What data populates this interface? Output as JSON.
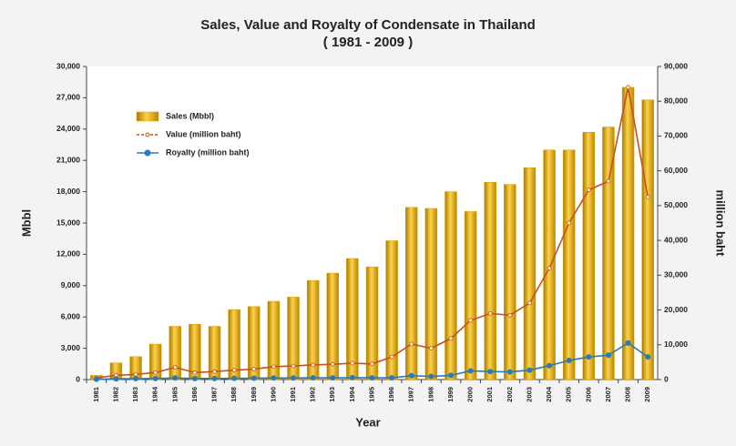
{
  "chart_data": {
    "type": "bar_line_dual",
    "title": "Sales, Value and Royalty of Condensate in Thailand",
    "subtitle": "( 1981 - 2009 )",
    "x_label": "Year",
    "y_label": "Mbbl",
    "y2_label": "million baht",
    "categories": [
      "1981",
      "1982",
      "1983",
      "1984",
      "1985",
      "1986",
      "1987",
      "1988",
      "1989",
      "1990",
      "1991",
      "1992",
      "1993",
      "1994",
      "1995",
      "1996",
      "1997",
      "1998",
      "1999",
      "2000",
      "2001",
      "2002",
      "2003",
      "2004",
      "2005",
      "2006",
      "2007",
      "2008",
      "2009"
    ],
    "series": [
      {
        "name": "Sales (Mbbl)",
        "kind": "bar",
        "color": "#d9a300",
        "values": [
          400,
          1600,
          2200,
          3400,
          5100,
          5300,
          5100,
          6700,
          7000,
          7500,
          7900,
          9500,
          10200,
          11600,
          10800,
          13300,
          16500,
          16400,
          18000,
          16100,
          18900,
          18700,
          20300,
          22000,
          22000,
          23700,
          24200,
          28000,
          26800
        ]
      },
      {
        "name": "Value (million baht)",
        "kind": "line",
        "axis": "y2",
        "color": "#c8501e",
        "values": [
          500,
          1200,
          1500,
          2000,
          3500,
          2000,
          2300,
          2700,
          3000,
          3700,
          3900,
          4200,
          4400,
          4700,
          4500,
          6500,
          10200,
          9000,
          11800,
          17000,
          19000,
          18500,
          22000,
          32000,
          45000,
          54500,
          57000,
          84000,
          52500
        ]
      },
      {
        "name": "Royalty (million baht)",
        "kind": "line",
        "axis": "y2",
        "color": "#2a7ab8",
        "values": [
          100,
          200,
          250,
          300,
          450,
          300,
          300,
          350,
          400,
          450,
          450,
          500,
          500,
          550,
          500,
          500,
          1100,
          900,
          1200,
          2500,
          2300,
          2200,
          2700,
          4000,
          5500,
          6500,
          7000,
          10500,
          6500
        ]
      }
    ],
    "ylim": [
      0,
      30000
    ],
    "yticks": [
      0,
      {
        "value": 3000,
        "label": "3,000"
      },
      {
        "value": 6000,
        "label": "6,000"
      },
      {
        "value": 9000,
        "label": "9,000"
      },
      {
        "value": 12000,
        "label": "12,000"
      },
      {
        "value": 15000,
        "label": "15,000"
      },
      {
        "value": 18000,
        "label": "18,000"
      },
      {
        "value": 21000,
        "label": "21,000"
      },
      {
        "value": 24000,
        "label": "24,000"
      },
      {
        "value": 27000,
        "label": "27,000"
      },
      {
        "value": 30000,
        "label": "30,000"
      }
    ],
    "y2lim": [
      0,
      90000
    ],
    "y2ticks": [
      0,
      {
        "value": 10000,
        "label": "10,000"
      },
      {
        "value": 20000,
        "label": "20,000"
      },
      {
        "value": 30000,
        "label": "30,000"
      },
      {
        "value": 40000,
        "label": "40,000"
      },
      {
        "value": 50000,
        "label": "50,000"
      },
      {
        "value": 60000,
        "label": "60,000"
      },
      {
        "value": 70000,
        "label": "70,000"
      },
      {
        "value": 80000,
        "label": "80,000"
      },
      {
        "value": 90000,
        "label": "90,000"
      }
    ],
    "legend": "upper left"
  }
}
